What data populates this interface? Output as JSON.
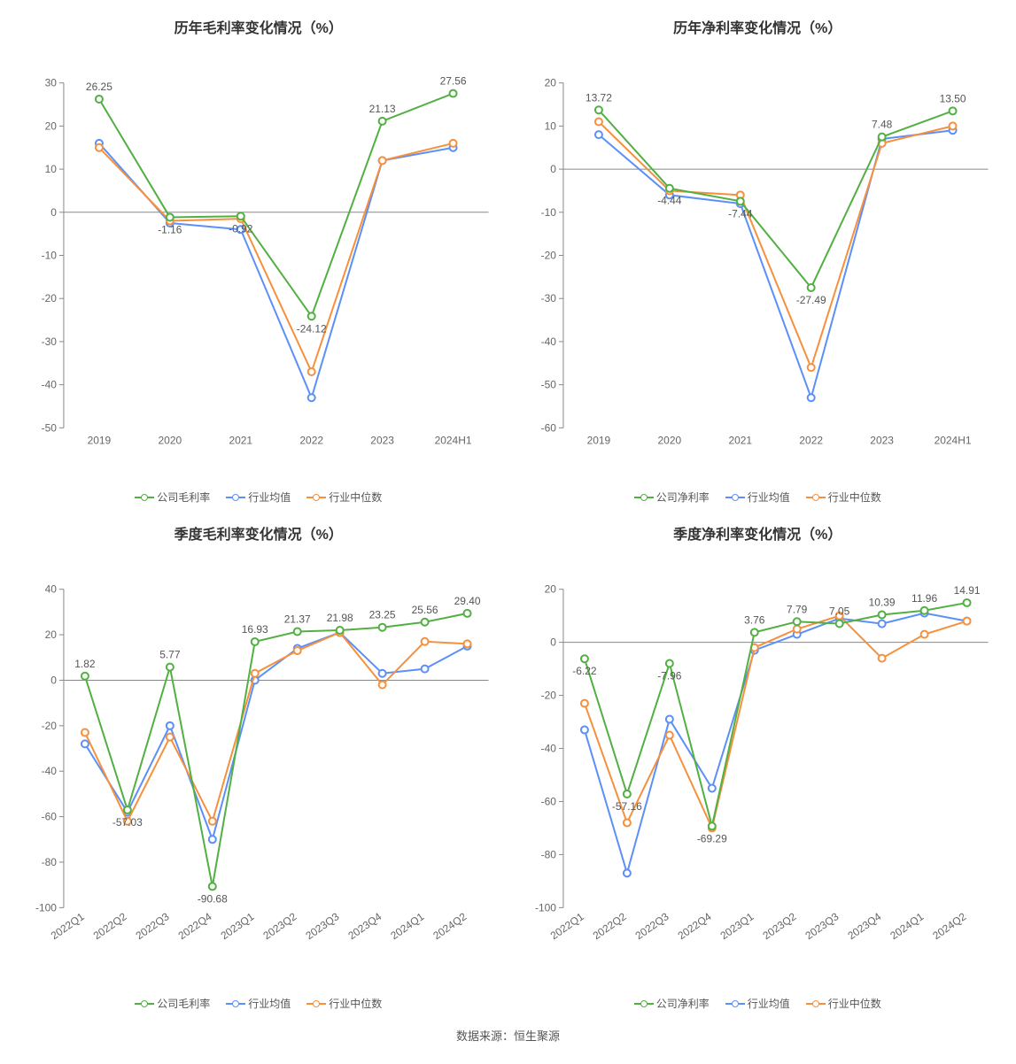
{
  "source_label": "数据来源：恒生聚源",
  "colors": {
    "green": "#52b043",
    "blue": "#5b8ff9",
    "orange": "#f6903d",
    "axis": "#888888",
    "tick_text": "#666666",
    "label_text": "#555555",
    "bg": "#ffffff"
  },
  "panels": [
    {
      "key": "annual_gross",
      "title": "历年毛利率变化情况（%）",
      "legend": [
        "公司毛利率",
        "行业均值",
        "行业中位数"
      ],
      "categories": [
        "2019",
        "2020",
        "2021",
        "2022",
        "2023",
        "2024H1"
      ],
      "ylim": [
        -50,
        30
      ],
      "ystep": 10,
      "rotate_x": false,
      "series": [
        {
          "name": "公司毛利率",
          "color": "#52b043",
          "values": [
            26.25,
            -1.16,
            -0.92,
            -24.12,
            21.13,
            27.56
          ],
          "show_labels": true
        },
        {
          "name": "行业均值",
          "color": "#5b8ff9",
          "values": [
            16.0,
            -2.5,
            -4.0,
            -43.0,
            12.0,
            15.0
          ],
          "show_labels": false
        },
        {
          "name": "行业中位数",
          "color": "#f6903d",
          "values": [
            15.0,
            -2.0,
            -1.5,
            -37.0,
            12.0,
            16.0
          ],
          "show_labels": false
        }
      ]
    },
    {
      "key": "annual_net",
      "title": "历年净利率变化情况（%）",
      "legend": [
        "公司净利率",
        "行业均值",
        "行业中位数"
      ],
      "categories": [
        "2019",
        "2020",
        "2021",
        "2022",
        "2023",
        "2024H1"
      ],
      "ylim": [
        -60,
        20
      ],
      "ystep": 10,
      "rotate_x": false,
      "series": [
        {
          "name": "公司净利率",
          "color": "#52b043",
          "values": [
            13.72,
            -4.44,
            -7.44,
            -27.49,
            7.48,
            13.5
          ],
          "show_labels": true
        },
        {
          "name": "行业均值",
          "color": "#5b8ff9",
          "values": [
            8.0,
            -6.0,
            -8.0,
            -53.0,
            7.0,
            9.0
          ],
          "show_labels": false
        },
        {
          "name": "行业中位数",
          "color": "#f6903d",
          "values": [
            11.0,
            -5.0,
            -6.0,
            -46.0,
            6.0,
            10.0
          ],
          "show_labels": false
        }
      ]
    },
    {
      "key": "quarter_gross",
      "title": "季度毛利率变化情况（%）",
      "legend": [
        "公司毛利率",
        "行业均值",
        "行业中位数"
      ],
      "categories": [
        "2022Q1",
        "2022Q2",
        "2022Q3",
        "2022Q4",
        "2023Q1",
        "2023Q2",
        "2023Q3",
        "2023Q4",
        "2024Q1",
        "2024Q2"
      ],
      "ylim": [
        -100,
        40
      ],
      "ystep": 20,
      "rotate_x": true,
      "series": [
        {
          "name": "公司毛利率",
          "color": "#52b043",
          "values": [
            1.82,
            -57.03,
            5.77,
            -90.68,
            16.93,
            21.37,
            21.98,
            23.25,
            25.56,
            29.4
          ],
          "show_labels": true
        },
        {
          "name": "行业均值",
          "color": "#5b8ff9",
          "values": [
            -28.0,
            -58.0,
            -20.0,
            -70.0,
            0.0,
            14.0,
            21.0,
            3.0,
            5.0,
            15.0
          ],
          "show_labels": false
        },
        {
          "name": "行业中位数",
          "color": "#f6903d",
          "values": [
            -23.0,
            -62.0,
            -25.0,
            -62.0,
            3.0,
            13.0,
            21.0,
            -2.0,
            17.0,
            16.0
          ],
          "show_labels": false
        }
      ]
    },
    {
      "key": "quarter_net",
      "title": "季度净利率变化情况（%）",
      "legend": [
        "公司净利率",
        "行业均值",
        "行业中位数"
      ],
      "categories": [
        "2022Q1",
        "2022Q2",
        "2022Q3",
        "2022Q4",
        "2023Q1",
        "2023Q2",
        "2023Q3",
        "2023Q4",
        "2024Q1",
        "2024Q2"
      ],
      "ylim": [
        -100,
        20
      ],
      "ystep": 20,
      "rotate_x": true,
      "series": [
        {
          "name": "公司净利率",
          "color": "#52b043",
          "values": [
            -6.22,
            -57.16,
            -7.96,
            -69.29,
            3.76,
            7.79,
            7.05,
            10.39,
            11.96,
            14.91
          ],
          "show_labels": true
        },
        {
          "name": "行业均值",
          "color": "#5b8ff9",
          "values": [
            -33.0,
            -87.0,
            -29.0,
            -55.0,
            -3.0,
            3.0,
            9.0,
            7.0,
            11.0,
            8.0
          ],
          "show_labels": false
        },
        {
          "name": "行业中位数",
          "color": "#f6903d",
          "values": [
            -23.0,
            -68.0,
            -35.0,
            -70.0,
            -2.0,
            5.0,
            10.0,
            -6.0,
            3.0,
            8.0
          ],
          "show_labels": false
        }
      ]
    }
  ]
}
